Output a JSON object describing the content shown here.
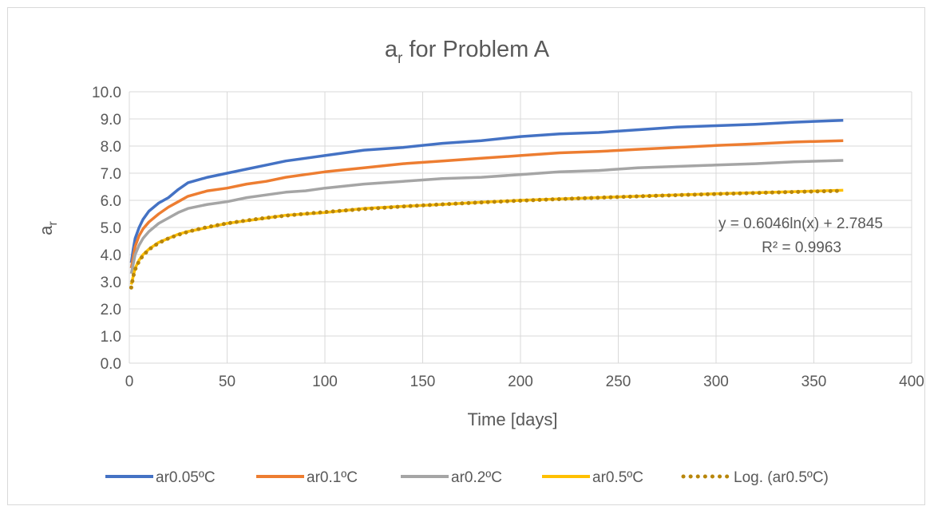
{
  "chart_data": {
    "type": "line",
    "title_main": "a",
    "title_sub": "r",
    "title_rest": " for Problem A",
    "xlabel": "Time [days]",
    "ylabel_main": "a",
    "ylabel_sub": "r",
    "xlim": [
      0,
      400
    ],
    "ylim": [
      0,
      10
    ],
    "xticks": [
      "0",
      "50",
      "100",
      "150",
      "200",
      "250",
      "300",
      "350",
      "400"
    ],
    "yticks": [
      "0.0",
      "1.0",
      "2.0",
      "3.0",
      "4.0",
      "5.0",
      "6.0",
      "7.0",
      "8.0",
      "9.0",
      "10.0"
    ],
    "grid": true,
    "legend_position": "bottom",
    "x": [
      1,
      2,
      3,
      5,
      7,
      10,
      15,
      20,
      25,
      30,
      40,
      50,
      60,
      70,
      80,
      90,
      100,
      120,
      140,
      160,
      180,
      200,
      220,
      240,
      260,
      280,
      300,
      320,
      340,
      365
    ],
    "series": [
      {
        "name": "ar0.05ºC",
        "color": "#4472c4",
        "style": "solid",
        "values": [
          3.7,
          4.2,
          4.6,
          5.0,
          5.3,
          5.6,
          5.9,
          6.1,
          6.4,
          6.65,
          6.85,
          7.0,
          7.15,
          7.3,
          7.45,
          7.55,
          7.65,
          7.85,
          7.95,
          8.1,
          8.2,
          8.35,
          8.45,
          8.5,
          8.6,
          8.7,
          8.75,
          8.8,
          8.88,
          8.95
        ]
      },
      {
        "name": "ar0.1ºC",
        "color": "#ed7d31",
        "style": "solid",
        "values": [
          3.5,
          3.9,
          4.3,
          4.7,
          4.95,
          5.2,
          5.5,
          5.75,
          5.95,
          6.15,
          6.35,
          6.45,
          6.6,
          6.7,
          6.85,
          6.95,
          7.05,
          7.2,
          7.35,
          7.45,
          7.55,
          7.65,
          7.75,
          7.8,
          7.88,
          7.95,
          8.02,
          8.08,
          8.15,
          8.2
        ]
      },
      {
        "name": "ar0.2ºC",
        "color": "#a5a5a5",
        "style": "solid",
        "values": [
          3.3,
          3.65,
          4.0,
          4.35,
          4.6,
          4.85,
          5.15,
          5.35,
          5.55,
          5.7,
          5.85,
          5.95,
          6.1,
          6.2,
          6.3,
          6.35,
          6.45,
          6.6,
          6.7,
          6.8,
          6.85,
          6.95,
          7.05,
          7.1,
          7.2,
          7.25,
          7.3,
          7.35,
          7.42,
          7.47
        ]
      },
      {
        "name": "ar0.5ºC",
        "color": "#ffc000",
        "style": "solid",
        "values": [
          2.9,
          3.2,
          3.5,
          3.8,
          4.0,
          4.2,
          4.45,
          4.6,
          4.75,
          4.85,
          5.0,
          5.15,
          5.25,
          5.35,
          5.45,
          5.5,
          5.55,
          5.7,
          5.78,
          5.85,
          5.93,
          6.0,
          6.05,
          6.1,
          6.15,
          6.2,
          6.24,
          6.28,
          6.32,
          6.37
        ]
      },
      {
        "name": "Log. (ar0.5ºC)",
        "color": "#b8860b",
        "style": "dotted",
        "trend_a": 0.6046,
        "trend_b": 2.7845
      }
    ],
    "annotation_eq": "y = 0.6046ln(x) + 2.7845",
    "annotation_r2": "R² = 0.9963"
  }
}
